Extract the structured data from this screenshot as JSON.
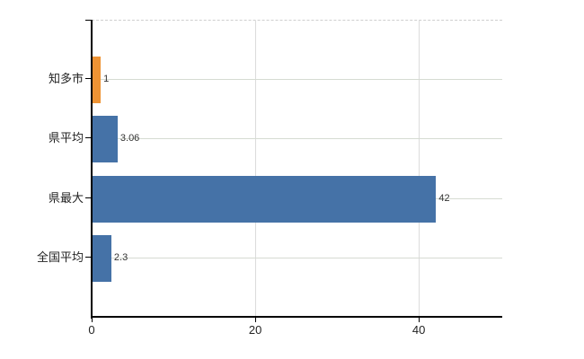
{
  "chart_data": {
    "type": "bar",
    "orientation": "horizontal",
    "title": "",
    "xlabel": "",
    "ylabel": "",
    "categories": [
      "知多市",
      "県平均",
      "県最大",
      "全国平均"
    ],
    "values": [
      1,
      3.06,
      42,
      2.3
    ],
    "value_labels": [
      "1",
      "3.06",
      "42",
      "2.3"
    ],
    "bar_colors": [
      "#ee9334",
      "#4572a7",
      "#4572a7",
      "#4572a7"
    ],
    "highlight_category": "知多市",
    "x_ticks": [
      0,
      20,
      40
    ],
    "x_tick_labels": [
      "0",
      "20",
      "40"
    ],
    "xlim": [
      0,
      50.2
    ],
    "grid": true,
    "legend": "none",
    "colors": {
      "bar_blue": "#4572a7",
      "bar_orange": "#ee9334",
      "grid_line": "#d6dbd2",
      "frame_dashed": "#cfcfcf",
      "axis": "#000000",
      "text": "#333333"
    }
  }
}
